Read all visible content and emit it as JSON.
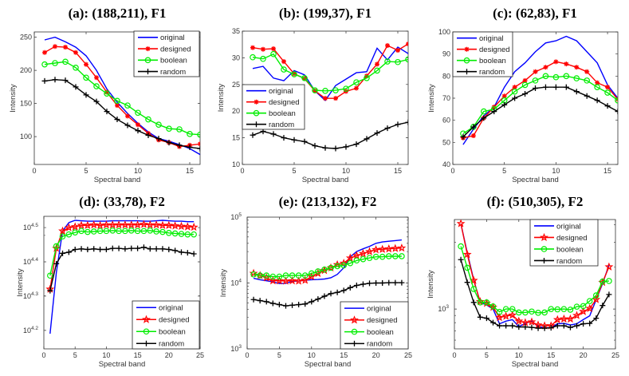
{
  "series_colors": {
    "original": "#0000ff",
    "designed": "#ff0000",
    "boolean": "#00ee00",
    "random": "#000000"
  },
  "chart_data": [
    {
      "type": "line",
      "title": "(a): (188,211), F1",
      "xlabel": "Spectral band",
      "ylabel": "Intensity",
      "xlim": [
        0,
        16
      ],
      "ylim": [
        58,
        258
      ],
      "yscale": "linear",
      "xticks": [
        0,
        5,
        10,
        15
      ],
      "yticks": [
        {
          "value": 100,
          "label": "100"
        },
        {
          "value": 150,
          "label": "150"
        },
        {
          "value": 200,
          "label": "200"
        },
        {
          "value": 250,
          "label": "250"
        }
      ],
      "legend": "top-right",
      "x": [
        1,
        2,
        3,
        4,
        5,
        6,
        7,
        8,
        9,
        10,
        11,
        12,
        13,
        14,
        15,
        16
      ],
      "series": [
        {
          "name": "original",
          "values": [
            246,
            250,
            243,
            235,
            222,
            200,
            172,
            152,
            135,
            120,
            107,
            97,
            93,
            88,
            82,
            73
          ]
        },
        {
          "name": "designed",
          "values": [
            227,
            236,
            235,
            227,
            209,
            189,
            167,
            147,
            131,
            118,
            105,
            95,
            91,
            85,
            87,
            89
          ]
        },
        {
          "name": "boolean",
          "values": [
            209,
            211,
            213,
            204,
            189,
            176,
            165,
            154,
            147,
            136,
            126,
            118,
            112,
            111,
            104,
            103
          ]
        },
        {
          "name": "random",
          "values": [
            184,
            186,
            185,
            175,
            163,
            153,
            138,
            126,
            117,
            109,
            102,
            97,
            91,
            87,
            84,
            82
          ]
        }
      ]
    },
    {
      "type": "line",
      "title": "(b): (199,37), F1",
      "xlabel": "Spectral band",
      "ylabel": "Intensity",
      "xlim": [
        0,
        16
      ],
      "ylim": [
        10,
        35
      ],
      "yscale": "linear",
      "xticks": [
        0,
        5,
        10,
        15
      ],
      "yticks": [
        {
          "value": 10,
          "label": "10"
        },
        {
          "value": 15,
          "label": "15"
        },
        {
          "value": 20,
          "label": "20"
        },
        {
          "value": 25,
          "label": "25"
        },
        {
          "value": 30,
          "label": "30"
        },
        {
          "value": 35,
          "label": "35"
        }
      ],
      "legend": "middle-left",
      "x": [
        1,
        2,
        3,
        4,
        5,
        6,
        7,
        8,
        9,
        10,
        11,
        12,
        13,
        14,
        15,
        16
      ],
      "series": [
        {
          "name": "original",
          "values": [
            28,
            28.4,
            26.2,
            25.7,
            27.6,
            26.8,
            23.8,
            22,
            24.8,
            26,
            27.2,
            27.4,
            31.8,
            29.6,
            32,
            30.8
          ]
        },
        {
          "name": "designed",
          "values": [
            31.9,
            31.6,
            31.7,
            29.3,
            27,
            26.1,
            23.8,
            22.4,
            22.4,
            23.7,
            24.3,
            26.6,
            28.8,
            32.3,
            31.4,
            32.6
          ]
        },
        {
          "name": "boolean",
          "values": [
            30.1,
            29.8,
            30.7,
            27.8,
            26.9,
            26.2,
            23.9,
            23.8,
            23.9,
            24.2,
            25.4,
            26.2,
            27.6,
            29.3,
            29.2,
            29.7
          ]
        },
        {
          "name": "random",
          "values": [
            15.5,
            16.2,
            15.7,
            15,
            14.6,
            14.3,
            13.5,
            13.1,
            13,
            13.3,
            13.8,
            14.8,
            15.9,
            16.8,
            17.5,
            17.9
          ]
        }
      ]
    },
    {
      "type": "line",
      "title": "(c): (62,83), F1",
      "xlabel": "Spectral band",
      "ylabel": "Intensity",
      "xlim": [
        0,
        16
      ],
      "ylim": [
        40,
        100
      ],
      "yscale": "linear",
      "xticks": [
        0,
        5,
        10,
        15
      ],
      "yticks": [
        {
          "value": 40,
          "label": "40"
        },
        {
          "value": 50,
          "label": "50"
        },
        {
          "value": 60,
          "label": "60"
        },
        {
          "value": 70,
          "label": "70"
        },
        {
          "value": 80,
          "label": "80"
        },
        {
          "value": 90,
          "label": "90"
        },
        {
          "value": 100,
          "label": "100"
        }
      ],
      "legend": "top-left",
      "x": [
        1,
        2,
        3,
        4,
        5,
        6,
        7,
        8,
        9,
        10,
        11,
        12,
        13,
        14,
        15,
        16
      ],
      "series": [
        {
          "name": "original",
          "values": [
            49,
            56,
            62,
            66,
            75,
            82,
            86,
            91,
            95,
            96,
            98,
            96,
            91,
            86,
            76,
            70
          ]
        },
        {
          "name": "designed",
          "values": [
            52,
            53,
            61,
            66,
            71,
            75,
            78,
            82,
            84,
            86.5,
            85.5,
            84,
            82,
            77,
            75,
            69.5
          ]
        },
        {
          "name": "boolean",
          "values": [
            54,
            57,
            64,
            65,
            69,
            73,
            76,
            78,
            80,
            79.5,
            80,
            79,
            78,
            75,
            72.5,
            69
          ]
        },
        {
          "name": "random",
          "values": [
            52.5,
            57,
            61,
            64,
            67,
            70,
            72,
            74.5,
            75,
            75,
            75,
            73,
            71,
            69,
            66.5,
            64
          ]
        }
      ]
    },
    {
      "type": "line",
      "title": "(d): (33,78), F2",
      "xlabel": "Spectral band",
      "ylabel": "Intensity",
      "xlim": [
        0,
        25
      ],
      "ylim": [
        14000,
        34100
      ],
      "yscale": "log",
      "xticks": [
        0,
        5,
        10,
        15,
        20,
        25
      ],
      "yticks": [
        {
          "value": 15849,
          "base": "10",
          "exp": "4.2"
        },
        {
          "value": 19953,
          "base": "10",
          "exp": "4.3"
        },
        {
          "value": 25119,
          "base": "10",
          "exp": "4.4"
        },
        {
          "value": 31623,
          "base": "10",
          "exp": "4.5"
        }
      ],
      "legend": "bottom-right",
      "x": [
        1,
        2,
        3,
        4,
        5,
        6,
        7,
        8,
        9,
        10,
        11,
        12,
        13,
        14,
        15,
        16,
        17,
        18,
        19,
        20,
        21,
        22,
        23,
        24
      ],
      "series": [
        {
          "name": "original",
          "values": [
            15500,
            23400,
            30900,
            32700,
            33200,
            33100,
            33000,
            33000,
            33000,
            33000,
            33100,
            33100,
            33100,
            33100,
            33100,
            33000,
            33000,
            33100,
            33200,
            33100,
            33000,
            33000,
            32900,
            32900
          ]
        },
        {
          "name": "designed",
          "values": [
            20900,
            27500,
            30900,
            31600,
            31800,
            32100,
            32100,
            32200,
            32100,
            32200,
            32200,
            32200,
            32200,
            32200,
            32200,
            32300,
            32200,
            32200,
            32100,
            32100,
            32000,
            31900,
            31800,
            31700
          ]
        },
        {
          "name": "boolean",
          "values": [
            22900,
            27900,
            29800,
            30200,
            30600,
            30900,
            30700,
            30800,
            30900,
            30900,
            31000,
            30900,
            30900,
            31000,
            30900,
            30900,
            31000,
            30800,
            30700,
            30500,
            30400,
            30300,
            30200,
            30200
          ]
        },
        {
          "name": "random",
          "values": [
            20700,
            24800,
            26600,
            26800,
            27300,
            27400,
            27300,
            27400,
            27300,
            27300,
            27500,
            27500,
            27400,
            27500,
            27500,
            27700,
            27400,
            27400,
            27400,
            27300,
            27100,
            26800,
            26700,
            26500
          ]
        }
      ]
    },
    {
      "type": "line",
      "title": "(e): (213,132), F2",
      "xlabel": "Spectral band",
      "ylabel": "Intensity",
      "xlim": [
        0,
        25
      ],
      "ylim": [
        1000,
        100000
      ],
      "yscale": "log",
      "xticks": [
        0,
        5,
        10,
        15,
        20,
        25
      ],
      "yticks": [
        {
          "value": 1000,
          "base": "10",
          "exp": "3"
        },
        {
          "value": 10000,
          "base": "10",
          "exp": "4"
        },
        {
          "value": 100000,
          "base": "10",
          "exp": "5"
        }
      ],
      "legend": "bottom-right",
      "x": [
        1,
        2,
        3,
        4,
        5,
        6,
        7,
        8,
        9,
        10,
        11,
        12,
        13,
        14,
        15,
        16,
        17,
        18,
        19,
        20,
        21,
        22,
        23,
        24
      ],
      "series": [
        {
          "name": "original",
          "values": [
            11800,
            11200,
            10800,
            10400,
            9800,
            9900,
            10600,
            10700,
            11000,
            11200,
            11300,
            11500,
            12000,
            13500,
            17000,
            25000,
            30000,
            33000,
            36000,
            40000,
            42000,
            43000,
            44000,
            45000
          ]
        },
        {
          "name": "designed",
          "values": [
            14000,
            13000,
            12000,
            10800,
            10800,
            10700,
            10800,
            10700,
            11000,
            12500,
            14000,
            15500,
            17000,
            19000,
            20000,
            24000,
            26000,
            28000,
            30000,
            32000,
            32500,
            33000,
            33500,
            34000
          ]
        },
        {
          "name": "boolean",
          "values": [
            13500,
            13000,
            13000,
            12500,
            12500,
            13000,
            13000,
            13000,
            13000,
            14000,
            15000,
            16000,
            17000,
            18000,
            18500,
            20000,
            22000,
            23000,
            24000,
            25000,
            25000,
            25500,
            25500,
            25500
          ]
        },
        {
          "name": "random",
          "values": [
            5600,
            5400,
            5200,
            4900,
            4700,
            4500,
            4600,
            4700,
            4800,
            5200,
            5700,
            6300,
            6900,
            7200,
            7700,
            8500,
            9200,
            9600,
            9900,
            10000,
            10000,
            10100,
            10100,
            10100
          ]
        }
      ]
    },
    {
      "type": "line",
      "title": "(f): (510,305), F2",
      "xlabel": "Spectral band",
      "ylabel": "Intensity",
      "xlim": [
        0,
        25
      ],
      "ylim": [
        520,
        4350
      ],
      "yscale": "log",
      "xticks": [
        0,
        5,
        10,
        15,
        20,
        25
      ],
      "yticks": [
        {
          "value": 1000,
          "base": "10",
          "exp": "3"
        }
      ],
      "legend": "top-right",
      "x": [
        1,
        2,
        3,
        4,
        5,
        6,
        7,
        8,
        9,
        10,
        11,
        12,
        13,
        14,
        15,
        16,
        17,
        18,
        19,
        20,
        21,
        22,
        23,
        24
      ],
      "series": [
        {
          "name": "original",
          "values": [
            4070,
            2510,
            1620,
            1115,
            1070,
            1000,
            785,
            820,
            840,
            750,
            790,
            820,
            750,
            735,
            735,
            785,
            790,
            770,
            785,
            840,
            895,
            1165,
            1515,
            2060
          ]
        },
        {
          "name": "designed",
          "values": [
            4070,
            2450,
            1600,
            1130,
            1100,
            1030,
            870,
            890,
            905,
            820,
            800,
            810,
            770,
            760,
            760,
            840,
            850,
            850,
            900,
            960,
            1010,
            1170,
            1550,
            2000
          ]
        },
        {
          "name": "boolean",
          "values": [
            2800,
            1970,
            1390,
            1115,
            1115,
            1045,
            955,
            1000,
            1000,
            945,
            945,
            960,
            940,
            945,
            1000,
            995,
            1000,
            990,
            1040,
            1050,
            1140,
            1250,
            1570,
            1585
          ]
        },
        {
          "name": "random",
          "values": [
            2250,
            1550,
            1115,
            875,
            860,
            800,
            760,
            760,
            760,
            745,
            745,
            740,
            730,
            730,
            735,
            760,
            760,
            740,
            760,
            785,
            790,
            860,
            1060,
            1270
          ]
        }
      ]
    }
  ]
}
